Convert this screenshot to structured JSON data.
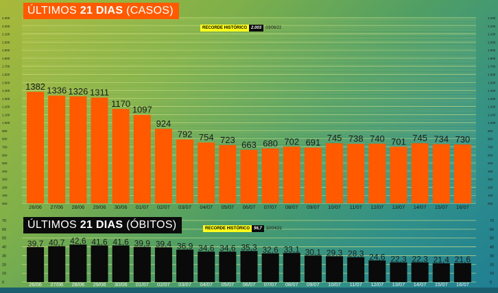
{
  "colors": {
    "cases_bar": "#ff5a00",
    "deaths_bar": "#0a0a0a",
    "grid": "#d9e48a",
    "record_highlight": "#ffff1a"
  },
  "cases_chart": {
    "title_prefix": "ÚLTIMOS ",
    "title_bold": "21 DIAS",
    "title_suffix": " (CASOS)",
    "record_label": "RECORDE HISTÓRICO",
    "record_value": "2.003",
    "record_date": "03/06/21"
  },
  "deaths_chart": {
    "title_prefix": "ÚLTIMOS ",
    "title_bold": "21 DIAS",
    "title_suffix": " (ÓBITOS)",
    "record_label": "RECORDE HISTÓRICO",
    "record_value": "56,7",
    "record_date": "10/04/21"
  },
  "chart_data": [
    {
      "type": "bar",
      "categories": [
        "26/06",
        "27/06",
        "28/06",
        "29/06",
        "30/06",
        "01/07",
        "02/07",
        "03/07",
        "04/07",
        "05/07",
        "06/07",
        "07/07",
        "08/07",
        "09/07",
        "10/07",
        "11/07",
        "12/07",
        "13/07",
        "14/07",
        "15/07",
        "16/07"
      ],
      "values": [
        1382,
        1336,
        1326,
        1311,
        1170,
        1097,
        924,
        792,
        754,
        723,
        663,
        680,
        702,
        691,
        745,
        738,
        740,
        701,
        745,
        734,
        730
      ],
      "value_labels": [
        "1382",
        "1336",
        "1326",
        "1311",
        "1170",
        "1097",
        "924",
        "792",
        "754",
        "723",
        "663",
        "680",
        "702",
        "691",
        "745",
        "738",
        "740",
        "701",
        "745",
        "734",
        "730"
      ],
      "ylim": [
        0,
        2300
      ],
      "yticks": [
        0,
        100,
        200,
        300,
        400,
        500,
        600,
        700,
        800,
        900,
        1000,
        1100,
        1200,
        1300,
        1400,
        1500,
        1600,
        1700,
        1800,
        1900,
        2000,
        2100,
        2200,
        2300
      ],
      "ytick_labels": [
        "000",
        "100",
        "200",
        "300",
        "400",
        "500",
        "600",
        "700",
        "800",
        "900",
        "1.000",
        "1.100",
        "1.200",
        "1.300",
        "1.400",
        "1.500",
        "1.600",
        "1.700",
        "1.800",
        "1.900",
        "2.000",
        "2.100",
        "2.200",
        "2.300"
      ],
      "minor_grid_step": 20,
      "grid": true
    },
    {
      "type": "bar",
      "categories": [
        "26/06",
        "27/06",
        "28/06",
        "29/06",
        "30/06",
        "01/07",
        "02/07",
        "03/07",
        "04/07",
        "05/07",
        "06/07",
        "07/07",
        "08/07",
        "09/07",
        "10/07",
        "11/07",
        "12/07",
        "13/07",
        "14/07",
        "15/07",
        "16/07"
      ],
      "values": [
        39.7,
        40.7,
        42.6,
        41.6,
        41.6,
        39.9,
        39.4,
        36.9,
        34.6,
        34.6,
        35.3,
        32.6,
        33.1,
        30.1,
        29.3,
        28.3,
        24.6,
        22.3,
        22.3,
        21.4,
        21.6
      ],
      "value_labels": [
        "39,7",
        "40,7",
        "42,6",
        "41,6",
        "41,6",
        "39,9",
        "39,4",
        "36,9",
        "34,6",
        "34,6",
        "35,3",
        "32,6",
        "33,1",
        "30,1",
        "29,3",
        "28,3",
        "24,6",
        "22,3",
        "22,3",
        "21,4",
        "21,6"
      ],
      "ylim": [
        0,
        70
      ],
      "yticks": [
        0,
        10,
        20,
        30,
        40,
        50,
        60,
        70
      ],
      "ytick_labels": [
        "0",
        "10",
        "20",
        "30",
        "40",
        "50",
        "60",
        "70"
      ],
      "grid": true
    }
  ]
}
